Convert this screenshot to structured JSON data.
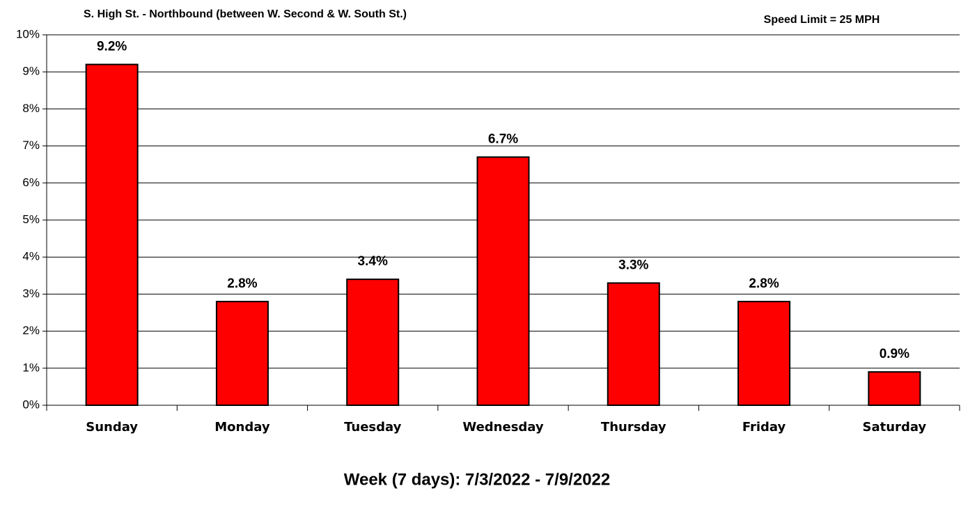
{
  "chart_data": {
    "type": "bar",
    "title": "S. High St. - Northbound (between W. Second & W. South St.)",
    "annotation": "Speed Limit = 25 MPH",
    "x_label": "Week (7 days): 7/3/2022 - 7/9/2022",
    "categories": [
      "Sunday",
      "Monday",
      "Tuesday",
      "Wednesday",
      "Thursday",
      "Friday",
      "Saturday"
    ],
    "values": [
      9.2,
      2.8,
      3.4,
      6.7,
      3.3,
      2.8,
      0.9
    ],
    "value_labels": [
      "9.2%",
      "2.8%",
      "3.4%",
      "6.7%",
      "3.3%",
      "2.8%",
      "0.9%"
    ],
    "color": "#ff0000",
    "ylim": [
      0,
      10
    ],
    "yticks": [
      {
        "value": 0,
        "label": "0%"
      },
      {
        "value": 1,
        "label": "1%"
      },
      {
        "value": 2,
        "label": "2%"
      },
      {
        "value": 3,
        "label": "3%"
      },
      {
        "value": 4,
        "label": "4%"
      },
      {
        "value": 5,
        "label": "5%"
      },
      {
        "value": 6,
        "label": "6%"
      },
      {
        "value": 7,
        "label": "7%"
      },
      {
        "value": 8,
        "label": "8%"
      },
      {
        "value": 9,
        "label": "9%"
      },
      {
        "value": 10,
        "label": "10%"
      }
    ],
    "grid": true
  }
}
